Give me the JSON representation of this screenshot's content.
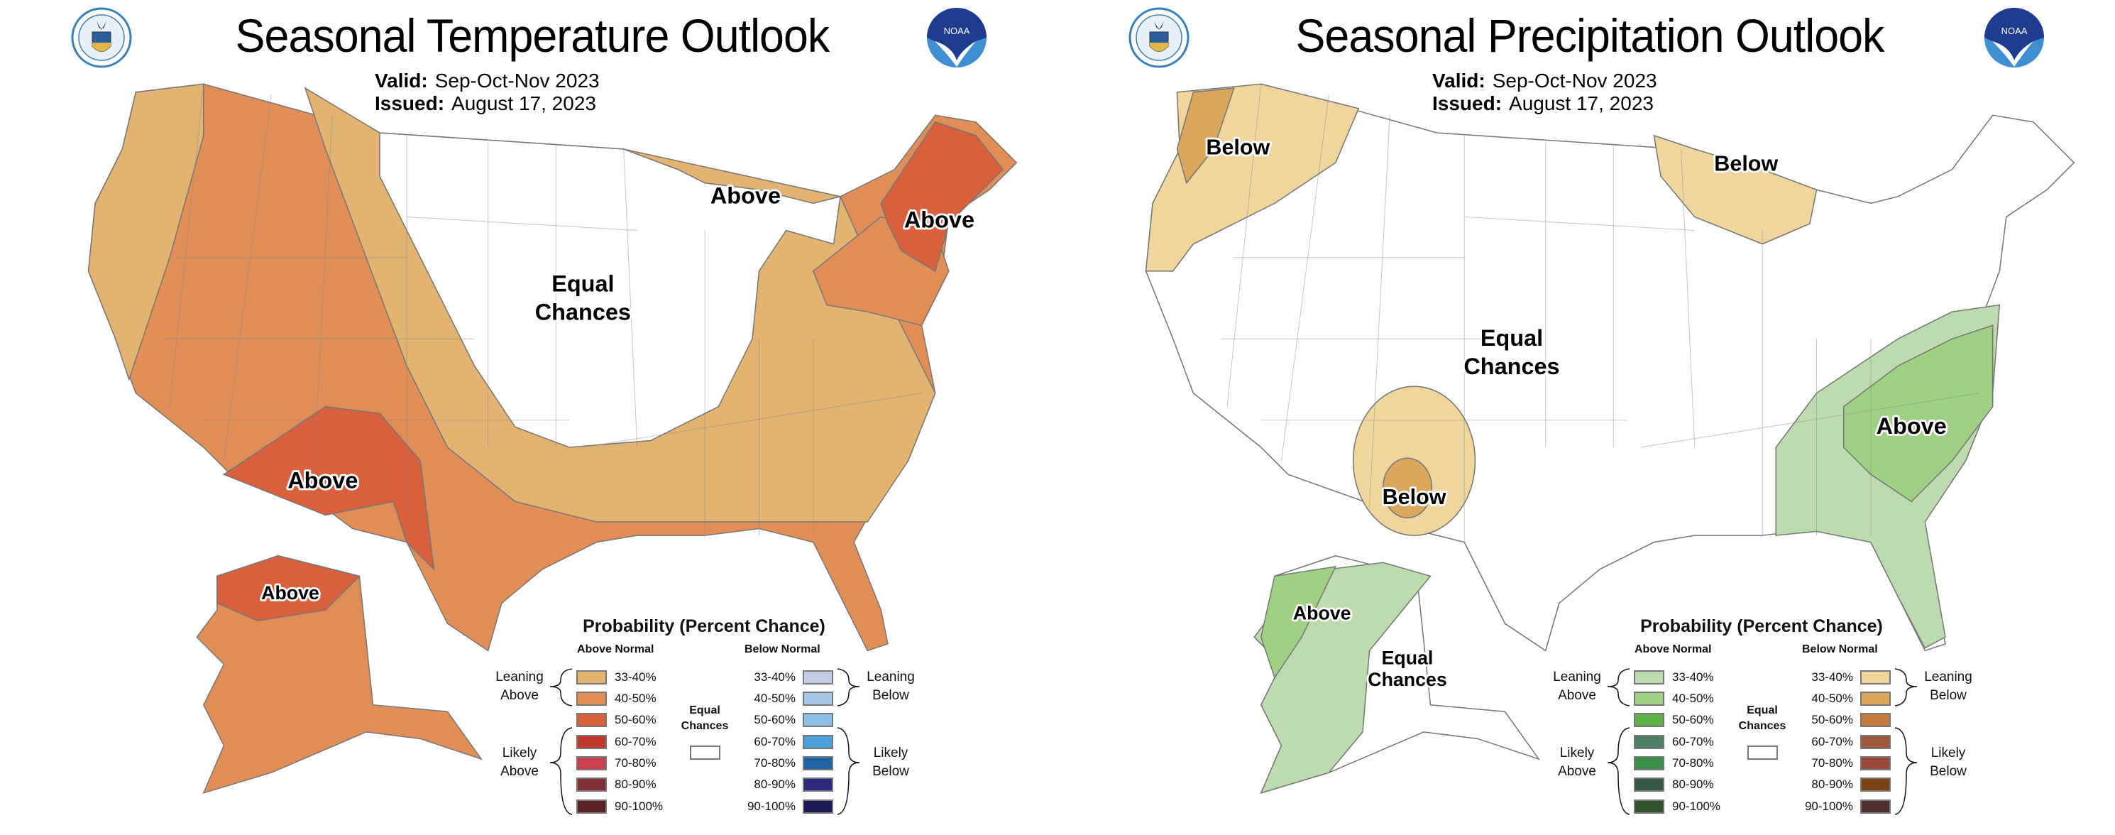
{
  "panels": [
    {
      "title": "Seasonal Temperature Outlook",
      "valid_label": "Valid:",
      "valid": "Sep-Oct-Nov 2023",
      "issued_label": "Issued:",
      "issued": "August 17, 2023",
      "logos": {
        "left": "department-of-commerce-seal",
        "right": "noaa-logo",
        "noaa_text": "NOAA"
      },
      "map_labels": {
        "above_west": "Above",
        "above_ne": "Above",
        "above_lakes": "Above",
        "equal1": "Equal",
        "equal2": "Chances",
        "above_alaska": "Above"
      },
      "legend": {
        "title": "Probability (Percent Chance)",
        "above_header": "Above Normal",
        "below_header": "Below Normal",
        "leaning_above": [
          "Leaning",
          "Above"
        ],
        "likely_above": [
          "Likely",
          "Above"
        ],
        "leaning_below": [
          "Leaning",
          "Below"
        ],
        "likely_below": [
          "Likely",
          "Below"
        ],
        "equal": [
          "Equal",
          "Chances"
        ],
        "ranges": [
          "33-40%",
          "40-50%",
          "50-60%",
          "60-70%",
          "70-80%",
          "80-90%",
          "90-100%"
        ],
        "above_colors": [
          "#e3b471",
          "#e08d56",
          "#d9603b",
          "#c0392b",
          "#c94150",
          "#7f2f35",
          "#5c1f24"
        ],
        "below_colors": [
          "#c5cde6",
          "#a8c6e6",
          "#8ebfe8",
          "#4da0dc",
          "#2164a6",
          "#2b2a7c",
          "#1d1a55"
        ]
      }
    },
    {
      "title": "Seasonal Precipitation Outlook",
      "valid_label": "Valid:",
      "valid": "Sep-Oct-Nov 2023",
      "issued_label": "Issued:",
      "issued": "August 17, 2023",
      "logos": {
        "left": "department-of-commerce-seal",
        "right": "noaa-logo",
        "noaa_text": "NOAA"
      },
      "map_labels": {
        "below_nw": "Below",
        "below_lakes": "Below",
        "below_sw": "Below",
        "above_se": "Above",
        "equal1": "Equal",
        "equal2": "Chances",
        "above_alaska": "Above",
        "ak_equal1": "Equal",
        "ak_equal2": "Chances"
      },
      "legend": {
        "title": "Probability (Percent Chance)",
        "above_header": "Above Normal",
        "below_header": "Below Normal",
        "leaning_above": [
          "Leaning",
          "Above"
        ],
        "likely_above": [
          "Likely",
          "Above"
        ],
        "leaning_below": [
          "Leaning",
          "Below"
        ],
        "likely_below": [
          "Likely",
          "Below"
        ],
        "equal": [
          "Equal",
          "Chances"
        ],
        "ranges": [
          "33-40%",
          "40-50%",
          "50-60%",
          "60-70%",
          "70-80%",
          "80-90%",
          "90-100%"
        ],
        "above_colors": [
          "#bcdcb0",
          "#9fd185",
          "#5fb246",
          "#4c7f63",
          "#3b8f4a",
          "#355747",
          "#30522a"
        ],
        "below_colors": [
          "#f0d69c",
          "#d9a85c",
          "#c77b40",
          "#a0583a",
          "#9a4a3d",
          "#7c4416",
          "#4e2f2d"
        ]
      }
    }
  ],
  "colors": {
    "equal_chances": "#ffffff",
    "boundary": "#777777"
  }
}
